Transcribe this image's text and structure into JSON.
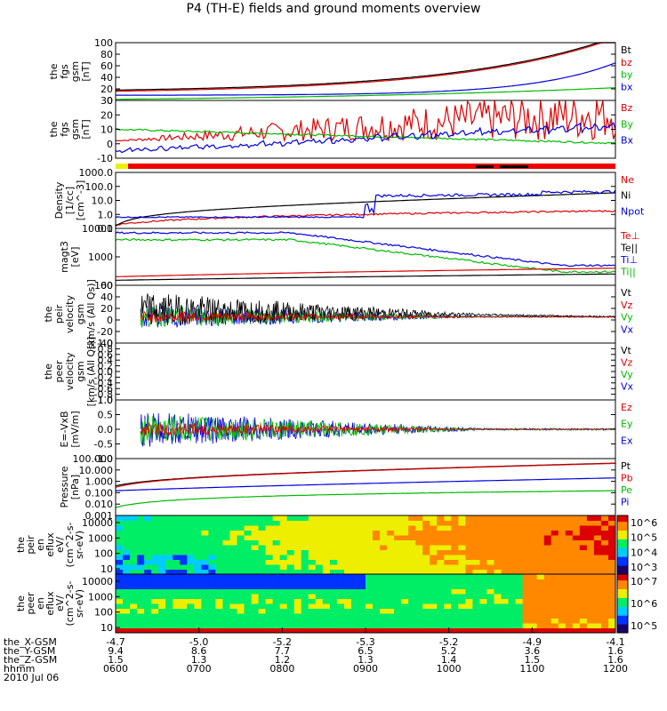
{
  "title": "P4 (TH-E) fields and ground moments overview",
  "chart_data": {
    "type": "line",
    "x": {
      "range_utc": [
        "06:00",
        "12:00"
      ],
      "tick_labels": [
        "0600",
        "0700",
        "0800",
        "0900",
        "1000",
        "1100",
        "1200"
      ]
    },
    "panels": [
      {
        "id": "fgs",
        "ylabel": [
          "the",
          "fgs",
          "gsm",
          "[nT]"
        ],
        "yticks": [
          "0",
          "20",
          "40",
          "60",
          "80",
          "100"
        ],
        "ylim": [
          0,
          100
        ],
        "legend": [
          {
            "t": "Bt",
            "c": "#000000"
          },
          {
            "t": "bz",
            "c": "#dd0000"
          },
          {
            "t": "by",
            "c": "#00bb00"
          },
          {
            "t": "bx",
            "c": "#0000dd"
          }
        ],
        "series": [
          {
            "name": "Bt",
            "color": "#000000",
            "kind": "exp",
            "y0": 18,
            "y1": 110,
            "k": 3.2
          },
          {
            "name": "bz",
            "color": "#dd0000",
            "kind": "exp",
            "y0": 16,
            "y1": 108,
            "k": 3.2
          },
          {
            "name": "by",
            "color": "#00bb00",
            "kind": "exp",
            "y0": 2,
            "y1": 22,
            "k": 1.5
          },
          {
            "name": "bx",
            "color": "#0000dd",
            "kind": "exp",
            "y0": 9,
            "y1": 65,
            "k": 6
          }
        ]
      },
      {
        "id": "fgs_dsl",
        "ylabel": [
          "the",
          "fgs",
          "gsm",
          "[nT]"
        ],
        "yticks": [
          "-10",
          "0",
          "10",
          "20",
          "30"
        ],
        "ylim": [
          -15,
          35
        ],
        "legend": [
          {
            "t": "Bz",
            "c": "#dd0000"
          },
          {
            "t": "By",
            "c": "#00bb00"
          },
          {
            "t": "Bx",
            "c": "#0000dd"
          }
        ],
        "series": [
          {
            "name": "Bz",
            "color": "#dd0000",
            "kind": "lin",
            "y0": 0,
            "y1": 25,
            "noise": 2
          },
          {
            "name": "By",
            "color": "#00bb00",
            "kind": "lin",
            "y0": 10,
            "y1": -2,
            "noise": 1.5
          },
          {
            "name": "Bx",
            "color": "#0000dd",
            "kind": "saw",
            "y0": -10,
            "y1": 10,
            "noise": 3
          }
        ]
      },
      {
        "id": "density",
        "ylabel": [
          "Density",
          "[1/cc]",
          "[cm^-3]"
        ],
        "yticks": [
          "0.1",
          "1.0",
          "10.0",
          "100.0",
          "1000.0"
        ],
        "ylog": true,
        "ylim": [
          0.1,
          3000
        ],
        "legend": [
          {
            "t": "Ne",
            "c": "#dd0000"
          },
          {
            "t": "Ni",
            "c": "#000000"
          },
          {
            "t": "Npot",
            "c": "#0000dd"
          }
        ],
        "series": [
          {
            "name": "Ne",
            "color": "#dd0000",
            "kind": "lin",
            "y0": 0.2,
            "y1": 2.5,
            "noise": 0.3
          },
          {
            "name": "Ni",
            "color": "#000000",
            "kind": "exp",
            "y0": 0.15,
            "y1": 70,
            "k": 3
          },
          {
            "name": "Npot",
            "color": "#0000dd",
            "kind": "step",
            "y0": 0.8,
            "y1": 60,
            "noise": 0.5
          }
        ]
      },
      {
        "id": "temp",
        "ylabel": [
          "magt3",
          "[eV]"
        ],
        "yticks": [
          "100",
          "1000",
          "10000"
        ],
        "ylog": true,
        "ylim": [
          100,
          10000
        ],
        "legend": [
          {
            "t": "Te⊥",
            "c": "#dd0000"
          },
          {
            "t": "Te||",
            "c": "#000000"
          },
          {
            "t": "Ti⊥",
            "c": "#0000dd"
          },
          {
            "t": "Ti||",
            "c": "#00bb00"
          }
        ],
        "series": [
          {
            "name": "Ti⊥",
            "color": "#0000dd",
            "kind": "dec",
            "y0": 7000,
            "y1": 500,
            "noise": 0.15
          },
          {
            "name": "Ti||",
            "color": "#00bb00",
            "kind": "dec",
            "y0": 4000,
            "y1": 300,
            "noise": 0.15
          },
          {
            "name": "Te⊥",
            "color": "#dd0000",
            "kind": "lin",
            "y0": 200,
            "y1": 400,
            "noise": 0.2
          },
          {
            "name": "Te||",
            "color": "#000000",
            "kind": "lin",
            "y0": 150,
            "y1": 250,
            "noise": 0.2
          }
        ]
      },
      {
        "id": "peir_vel",
        "ylabel": [
          "the",
          "peir",
          "velocity",
          "gsm",
          "[km/s (All Qs)]"
        ],
        "yticks": [
          "-40",
          "-20",
          "0",
          "20",
          "40",
          "60"
        ],
        "ylim": [
          -50,
          60
        ],
        "legend": [
          {
            "t": "Vt",
            "c": "#000000"
          },
          {
            "t": "Vz",
            "c": "#dd0000"
          },
          {
            "t": "Vy",
            "c": "#00bb00"
          },
          {
            "t": "Vx",
            "c": "#0000dd"
          }
        ],
        "series": [
          {
            "name": "Vx",
            "color": "#0000dd",
            "kind": "noise",
            "y0": 0,
            "amp": 25,
            "decay": true
          },
          {
            "name": "Vy",
            "color": "#00bb00",
            "kind": "noise",
            "y0": 0,
            "amp": 22,
            "decay": true
          },
          {
            "name": "Vt",
            "color": "#000000",
            "kind": "noise",
            "y0": 15,
            "amp": 35,
            "decay": true
          },
          {
            "name": "Vz",
            "color": "#dd0000",
            "kind": "noise",
            "y0": 0,
            "amp": 12,
            "decay": true
          }
        ]
      },
      {
        "id": "peer_vel",
        "ylabel": [
          "the",
          "peer",
          "velocity",
          "gsm",
          "[km/s (All Qs)]"
        ],
        "yticks": [
          "-1.0",
          "-0.8",
          "-0.6",
          "-0.4",
          "-0.2",
          "0.0",
          "0.2",
          "0.4",
          "0.6",
          "0.8",
          "1.0"
        ],
        "ylim": [
          -1,
          1
        ],
        "legend": [
          {
            "t": "Vt",
            "c": "#000000"
          },
          {
            "t": "Vz",
            "c": "#dd0000"
          },
          {
            "t": "Vy",
            "c": "#00bb00"
          },
          {
            "t": "Vx",
            "c": "#0000dd"
          }
        ],
        "series": []
      },
      {
        "id": "efield",
        "ylabel": [
          "E=-VxB",
          "[mV/m]"
        ],
        "yticks": [
          "-1.0",
          "-0.5",
          "0.0",
          "0.5",
          "1.0"
        ],
        "ylim": [
          -1.2,
          1.2
        ],
        "legend": [
          {
            "t": "Ez",
            "c": "#dd0000"
          },
          {
            "t": "Ey",
            "c": "#00bb00"
          },
          {
            "t": "Ex",
            "c": "#0000dd"
          }
        ],
        "series": [
          {
            "name": "Ex",
            "color": "#0000dd",
            "kind": "noise",
            "y0": 0,
            "amp": 0.8,
            "decay": true
          },
          {
            "name": "Ey",
            "color": "#00bb00",
            "kind": "noise",
            "y0": 0,
            "amp": 0.7,
            "decay": true
          },
          {
            "name": "Ez",
            "color": "#dd0000",
            "kind": "noise",
            "y0": 0,
            "amp": 0.3,
            "decay": true
          }
        ]
      },
      {
        "id": "pressure",
        "ylabel": [
          "Pressure",
          "[nPa]"
        ],
        "yticks": [
          "0.001",
          "0.010",
          "0.100",
          "1.000",
          "10.000",
          "100.000"
        ],
        "ylog": true,
        "ylim": [
          0.001,
          100
        ],
        "legend": [
          {
            "t": "Pt",
            "c": "#000000"
          },
          {
            "t": "Pb",
            "c": "#dd0000"
          },
          {
            "t": "Pe",
            "c": "#00bb00"
          },
          {
            "t": "Pi",
            "c": "#0000dd"
          }
        ],
        "series": [
          {
            "name": "Pt",
            "color": "#000000",
            "kind": "exp",
            "y0": 0.4,
            "y1": 40,
            "k": 2.5
          },
          {
            "name": "Pb",
            "color": "#dd0000",
            "kind": "exp",
            "y0": 0.3,
            "y1": 38,
            "k": 2.5
          },
          {
            "name": "Pi",
            "color": "#0000dd",
            "kind": "exp",
            "y0": 0.15,
            "y1": 2,
            "k": 2
          },
          {
            "name": "Pe",
            "color": "#00bb00",
            "kind": "lin",
            "y0": 0.005,
            "y1": 0.15,
            "noise": 0.05
          }
        ]
      }
    ],
    "spectrograms": [
      {
        "id": "peir_en",
        "ylabel": [
          "the",
          "peir",
          "en",
          "eflux",
          "eV/",
          "(cm^2-s-",
          "sr-eV)"
        ],
        "yticks": [
          "10",
          "100",
          "1000",
          "10000"
        ],
        "cbar_ticks": [
          "10^3",
          "10^4",
          "10^5",
          "10^6"
        ]
      },
      {
        "id": "peer_en",
        "ylabel": [
          "the",
          "peer",
          "en",
          "eflux",
          "eV/",
          "(cm^2-s-",
          "sr-eV)"
        ],
        "yticks": [
          "10",
          "100",
          "1000",
          "10000"
        ],
        "cbar_ticks": [
          "10^5",
          "10^6",
          "10^7"
        ]
      }
    ],
    "ephemeris": {
      "rows": [
        {
          "label": "the_X-GSM",
          "values": [
            "-4.7",
            "-5.0",
            "-5.2",
            "-5.3",
            "-5.2",
            "-4.9",
            "-4.1"
          ]
        },
        {
          "label": "the_Y-GSM",
          "values": [
            "9.4",
            "8.6",
            "7.7",
            "6.5",
            "5.2",
            "3.6",
            "1.6"
          ]
        },
        {
          "label": "the_Z-GSM",
          "values": [
            "1.5",
            "1.3",
            "1.2",
            "1.3",
            "1.4",
            "1.5",
            "1.6"
          ]
        },
        {
          "label": "hhmm",
          "values": [
            "0600",
            "0700",
            "0800",
            "0900",
            "1000",
            "1100",
            "1200"
          ]
        }
      ],
      "date": "2010 Jul 06"
    }
  }
}
